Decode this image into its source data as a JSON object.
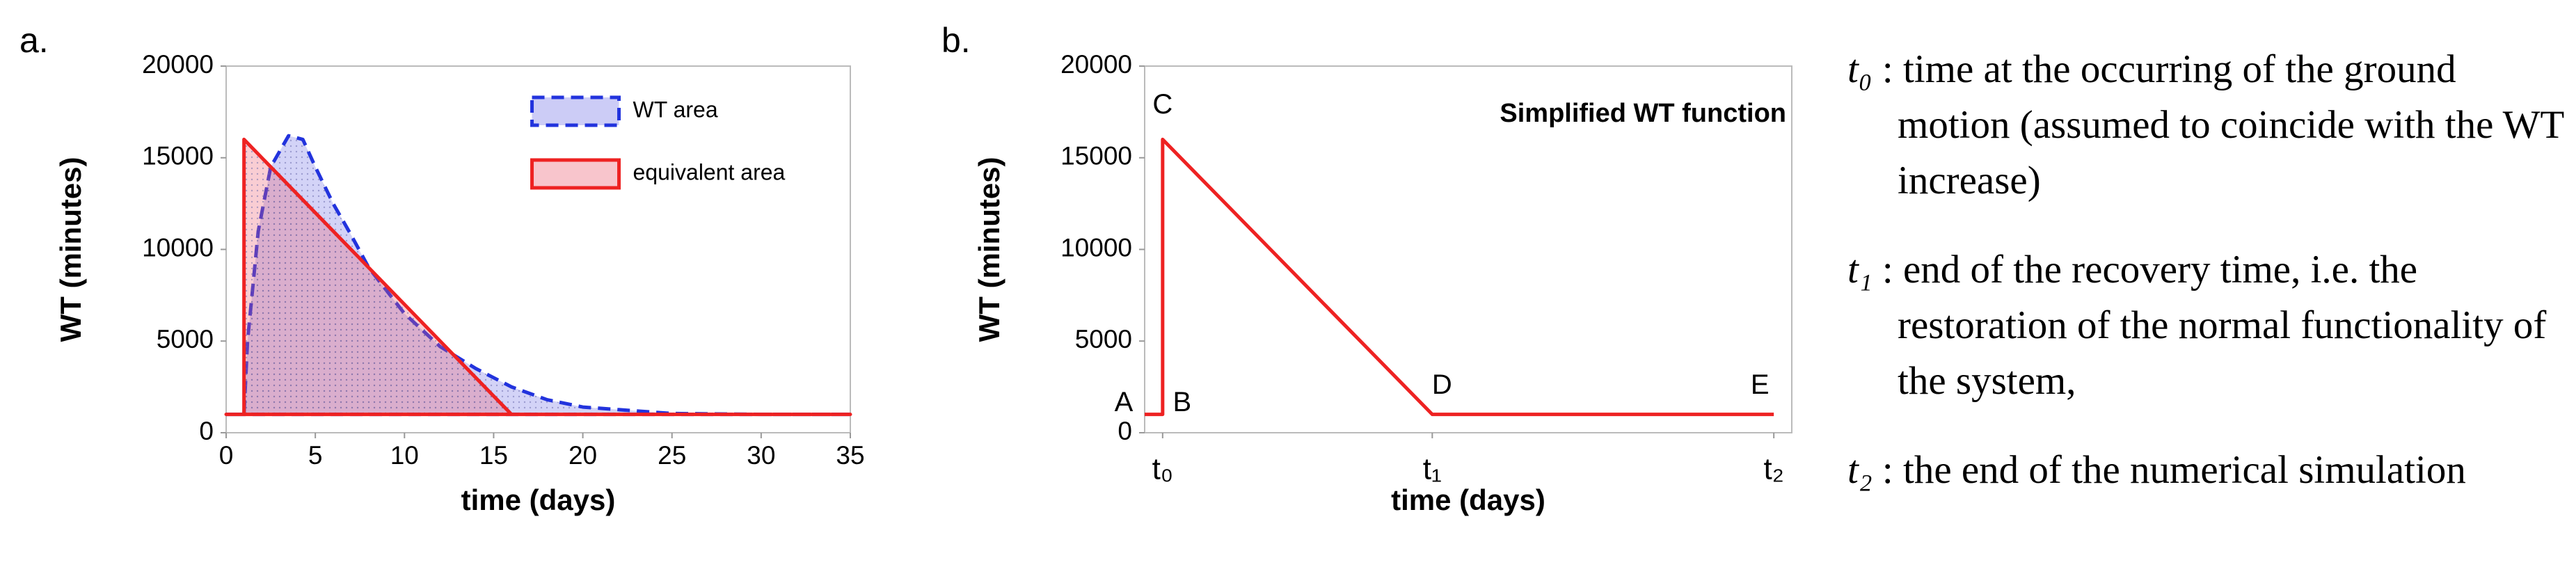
{
  "chart_data": [
    {
      "type": "area",
      "label": "a.",
      "xlabel": "time (days)",
      "ylabel": "WT (minutes)",
      "xlim": [
        0,
        35
      ],
      "xticks": [
        0,
        5,
        10,
        15,
        20,
        25,
        30,
        35
      ],
      "ylim": [
        0,
        20000
      ],
      "yticks": [
        0,
        5000,
        10000,
        15000,
        20000
      ],
      "legend": "upper right",
      "series": [
        {
          "name": "WT area",
          "color": "#2233dd",
          "dashed": true,
          "x": [
            0,
            1,
            1.2,
            1.8,
            2.5,
            3.5,
            4.3,
            5,
            6,
            7,
            8,
            10,
            12,
            14,
            16,
            18,
            20,
            25,
            30,
            35
          ],
          "values": [
            1000,
            1000,
            5000,
            11000,
            14500,
            16200,
            16000,
            14500,
            12500,
            10800,
            9000,
            6500,
            4700,
            3500,
            2500,
            1800,
            1400,
            1050,
            1000,
            1000
          ]
        },
        {
          "name": "equivalent area",
          "color": "#ee2222",
          "dashed": false,
          "x": [
            0,
            1,
            1,
            16,
            35
          ],
          "values": [
            1000,
            1000,
            16000,
            1000,
            1000
          ]
        }
      ]
    },
    {
      "type": "line",
      "label": "b.",
      "title": "Simplified WT function",
      "xlabel": "time (days)",
      "ylabel": "WT (minutes)",
      "xlim": [
        0,
        36
      ],
      "xticks": [
        {
          "value": 1,
          "label": "t₀"
        },
        {
          "value": 16,
          "label": "t₁"
        },
        {
          "value": 35,
          "label": "t₂"
        }
      ],
      "ylim": [
        0,
        20000
      ],
      "yticks": [
        0,
        5000,
        10000,
        15000,
        20000
      ],
      "series": [
        {
          "color": "#ee2222",
          "x": [
            0,
            1,
            1,
            16,
            35
          ],
          "values": [
            1000,
            1000,
            16000,
            1000,
            1000
          ],
          "point_labels": [
            "A",
            "B",
            "C",
            "D",
            "E"
          ]
        }
      ]
    }
  ],
  "definitions": [
    {
      "term": "t₀",
      "text": "time at the occurring of the ground motion (assumed to coincide with the WT increase)"
    },
    {
      "term": "t₁",
      "text": "end of the recovery time, i.e. the restoration of the normal functionality of the system,"
    },
    {
      "term": "t₂",
      "text": "the end of the numerical simulation"
    }
  ]
}
